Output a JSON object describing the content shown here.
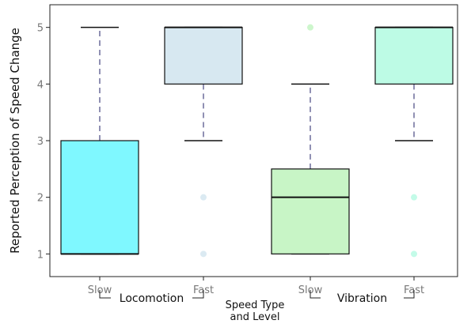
{
  "chart_data": {
    "type": "box",
    "ylabel": "Reported Perception of Speed Change",
    "xlabel_line1": "Speed Type",
    "xlabel_line2": "and Level",
    "ylim": [
      0.6,
      5.4
    ],
    "yticks": [
      "1",
      "2",
      "3",
      "4",
      "5"
    ],
    "categories": [
      "Slow",
      "Fast",
      "Slow",
      "Fast"
    ],
    "groups": [
      {
        "label": "Locomotion",
        "categories": [
          "Slow",
          "Fast"
        ]
      },
      {
        "label": "Vibration",
        "categories": [
          "Slow",
          "Fast"
        ]
      }
    ],
    "grid": false,
    "boxes": [
      {
        "category": "Slow",
        "group": "Locomotion",
        "whisker_low": 1,
        "q1": 1,
        "median": 1,
        "q3": 3,
        "whisker_high": 5,
        "outliers": [],
        "color": "#7ff8ff"
      },
      {
        "category": "Fast",
        "group": "Locomotion",
        "whisker_low": 3,
        "q1": 4,
        "median": 5,
        "q3": 5,
        "whisker_high": 5,
        "outliers": [
          1,
          2
        ],
        "color": "#d7e8f1"
      },
      {
        "category": "Slow",
        "group": "Vibration",
        "whisker_low": 1,
        "q1": 1,
        "median": 2,
        "q3": 2.5,
        "whisker_high": 4,
        "outliers": [
          5
        ],
        "color": "#c8f5c6"
      },
      {
        "category": "Fast",
        "group": "Vibration",
        "whisker_low": 3,
        "q1": 4,
        "median": 5,
        "q3": 5,
        "whisker_high": 5,
        "outliers": [
          1,
          2
        ],
        "color": "#bdfbe5"
      }
    ]
  }
}
